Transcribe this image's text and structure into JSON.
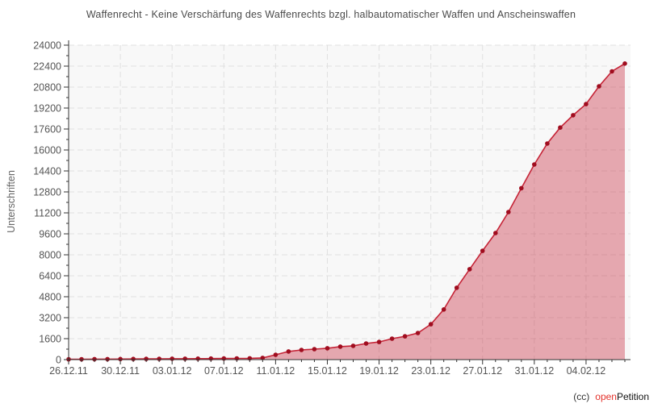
{
  "title": "Waffenrecht - Keine Verschärfung des Waffenrechts bzgl. halbautomatischer Waffen und Anscheinswaffen",
  "footer": {
    "cc": "(cc)",
    "brand_open": "open",
    "brand_petition": "Petition",
    "cc_color": "#333333",
    "open_color": "#e4322b",
    "petition_color": "#111111"
  },
  "chart_data": {
    "type": "area",
    "title": "Waffenrecht - Keine Verschärfung des Waffenrechts bzgl. halbautomatischer Waffen und Anscheinswaffen",
    "xlabel": "",
    "ylabel": "Unterschriften",
    "ylim": [
      0,
      24000
    ],
    "grid": true,
    "legend": "none",
    "x": [
      "26.12.11",
      "27.12.11",
      "28.12.11",
      "29.12.11",
      "30.12.11",
      "31.12.11",
      "01.01.12",
      "02.01.12",
      "03.01.12",
      "04.01.12",
      "05.01.12",
      "06.01.12",
      "07.01.12",
      "08.01.12",
      "09.01.12",
      "10.01.12",
      "11.01.12",
      "12.01.12",
      "13.01.12",
      "14.01.12",
      "15.01.12",
      "16.01.12",
      "17.01.12",
      "18.01.12",
      "19.01.12",
      "20.01.12",
      "21.01.12",
      "22.01.12",
      "23.01.12",
      "24.01.12",
      "25.01.12",
      "26.01.12",
      "27.01.12",
      "28.01.12",
      "29.01.12",
      "30.01.12",
      "31.01.12",
      "01.02.12",
      "02.02.12",
      "03.02.12",
      "04.02.12",
      "05.02.12",
      "06.02.12",
      "07.02.12"
    ],
    "values": [
      25,
      30,
      35,
      40,
      45,
      50,
      55,
      60,
      65,
      70,
      75,
      80,
      85,
      90,
      100,
      130,
      370,
      620,
      740,
      800,
      870,
      990,
      1050,
      1230,
      1350,
      1600,
      1780,
      2030,
      2700,
      3830,
      5480,
      6900,
      8300,
      9660,
      11260,
      13080,
      14890,
      16490,
      17710,
      18650,
      19500,
      20860,
      22000,
      22600
    ],
    "x_tick_every_days": 4,
    "x_tick_labels": [
      "26.12.11",
      "30.12.11",
      "03.01.12",
      "07.01.12",
      "11.01.12",
      "15.01.12",
      "19.01.12",
      "23.01.12",
      "27.01.12",
      "31.01.12",
      "04.02.12"
    ],
    "y_ticks": [
      0,
      1600,
      3200,
      4800,
      6400,
      8000,
      9600,
      11200,
      12800,
      14400,
      16000,
      17600,
      19200,
      20800,
      22400,
      24000
    ],
    "y_minor_step": 800,
    "colors": {
      "line": "#c52336",
      "point": "#a00d1f",
      "fill": "rgba(197,35,54,0.38)",
      "grid": "#e0e0e0",
      "axis": "#333333",
      "tick_label": "#555555",
      "title": "#4a4a4a",
      "plot_bg": "#f8f8f8"
    }
  }
}
